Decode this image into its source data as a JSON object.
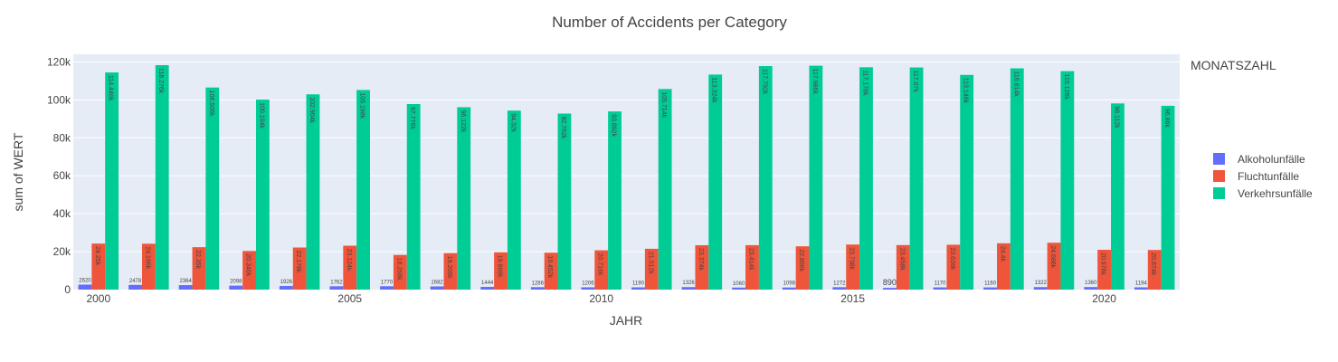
{
  "chart_data": {
    "type": "bar",
    "title": "Number of Accidents per Category",
    "xlabel": "JAHR",
    "ylabel": "sum of WERT",
    "x": [
      2000,
      2001,
      2002,
      2003,
      2004,
      2005,
      2006,
      2007,
      2008,
      2009,
      2010,
      2011,
      2012,
      2013,
      2014,
      2015,
      2016,
      2017,
      2018,
      2019,
      2020,
      2021
    ],
    "xticks": [
      {
        "value": 2000,
        "label": "2000"
      },
      {
        "value": 2005,
        "label": "2005"
      },
      {
        "value": 2010,
        "label": "2010"
      },
      {
        "value": 2015,
        "label": "2015"
      },
      {
        "value": 2020,
        "label": "2020"
      }
    ],
    "yticks": [
      {
        "value": 0,
        "label": "0"
      },
      {
        "value": 20000,
        "label": "20k"
      },
      {
        "value": 40000,
        "label": "40k"
      },
      {
        "value": 60000,
        "label": "60k"
      },
      {
        "value": 80000,
        "label": "80k"
      },
      {
        "value": 100000,
        "label": "100k"
      },
      {
        "value": 120000,
        "label": "120k"
      }
    ],
    "ylim": [
      0,
      124000
    ],
    "legend_title": "MONATSZAHL",
    "legend_position": "right",
    "series": [
      {
        "name": "Alkoholunfälle",
        "color": "#636efa",
        "values": [
          2620,
          2478,
          2364,
          2098,
          1926,
          1762,
          1770,
          1682,
          1444,
          1286,
          1206,
          1190,
          1326,
          1060,
          1098,
          1272,
          890,
          1170,
          1160,
          1322,
          1360,
          1194
        ],
        "labels": [
          "2620",
          "2478",
          "2364",
          "2098",
          "1926",
          "1762",
          "1770",
          "1682",
          "1444",
          "1286",
          "1206",
          "1190",
          "1326",
          "1060",
          "1098",
          "1272",
          "890",
          "1170",
          "1160",
          "1322",
          "1360",
          "1194"
        ]
      },
      {
        "name": "Fluchtunfälle",
        "color": "#ef553b",
        "values": [
          24250,
          24166,
          22350,
          20346,
          22178,
          23124,
          18268,
          19206,
          19668,
          19452,
          20716,
          21512,
          23374,
          23414,
          22806,
          23738,
          23458,
          23628,
          24400,
          24688,
          20978,
          20874
        ],
        "labels": [
          "24.25k",
          "24.166k",
          "22.35k",
          "20.346k",
          "22.178k",
          "23.124k",
          "18.268k",
          "19.206k",
          "19.668k",
          "19.452k",
          "20.716k",
          "21.512k",
          "23.374k",
          "23.414k",
          "22.806k",
          "23.738k",
          "23.458k",
          "23.628k",
          "24.4k",
          "24.688k",
          "20.978k",
          "20.874k"
        ]
      },
      {
        "name": "Verkehrsunfälle",
        "color": "#00cc96",
        "values": [
          114446,
          118276,
          106506,
          100104,
          102904,
          105198,
          97776,
          96122,
          94320,
          92762,
          93892,
          105714,
          113324,
          117792,
          117986,
          117178,
          117070,
          113148,
          116614,
          115126,
          98112,
          96860
        ],
        "labels": [
          "114.446k",
          "118.276k",
          "106.506k",
          "100.104k",
          "102.904k",
          "105.198k",
          "97.776k",
          "96.122k",
          "94.32k",
          "92.762k",
          "93.892k",
          "105.714k",
          "113.324k",
          "117.792k",
          "117.986k",
          "117.178k",
          "117.07k",
          "113.148k",
          "116.614k",
          "115.126k",
          "98.112k",
          "96.86k"
        ]
      }
    ]
  }
}
